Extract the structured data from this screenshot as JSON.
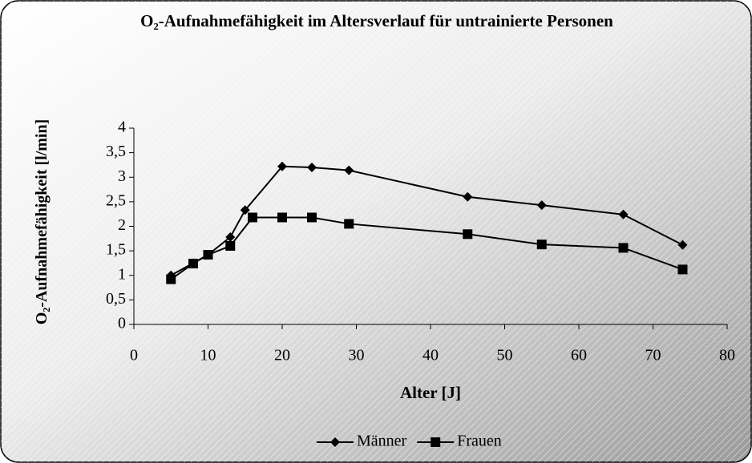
{
  "chart_data": {
    "type": "line",
    "title": "O₂-Aufnahmefähigkeit im Altersverlauf für untrainierte Personen",
    "x_label": "Alter [J]",
    "y_label": "O₂-Aufnahmefähigkeit [l/min]",
    "xlim": [
      0,
      80
    ],
    "xticks": [
      0,
      10,
      20,
      30,
      40,
      50,
      60,
      70,
      80
    ],
    "ylim": [
      0,
      4
    ],
    "yticks": [
      0,
      {
        "value": 0.5,
        "label": "0,5"
      },
      1,
      {
        "value": 1.5,
        "label": "1,5"
      },
      2,
      {
        "value": 2.5,
        "label": "2,5"
      },
      3,
      {
        "value": 3.5,
        "label": "3,5"
      },
      4
    ],
    "grid": false,
    "legend": "bottom",
    "series": [
      {
        "name": "Männer",
        "color": "#000000",
        "marker": "diamond",
        "x": [
          5,
          8,
          10,
          13,
          15,
          20,
          24,
          29,
          45,
          55,
          66,
          74
        ],
        "values": [
          1.0,
          1.25,
          1.42,
          1.78,
          2.33,
          3.22,
          3.2,
          3.14,
          2.6,
          2.43,
          2.24,
          1.62
        ]
      },
      {
        "name": "Frauen",
        "color": "#000000",
        "marker": "square",
        "x": [
          5,
          8,
          10,
          13,
          16,
          20,
          24,
          29,
          45,
          55,
          66,
          74
        ],
        "values": [
          0.92,
          1.24,
          1.42,
          1.6,
          2.18,
          2.18,
          2.18,
          2.05,
          1.84,
          1.63,
          1.56,
          1.12
        ]
      }
    ]
  }
}
